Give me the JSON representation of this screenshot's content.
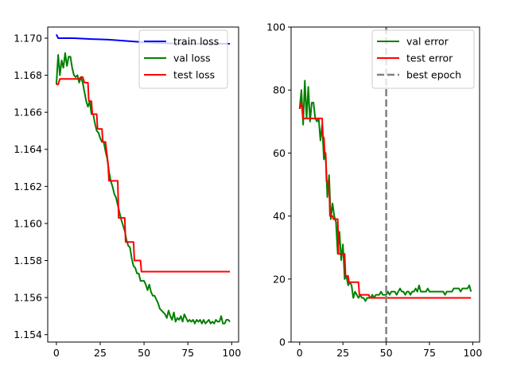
{
  "chart_data": [
    {
      "type": "line",
      "title": "",
      "xlabel": "",
      "ylabel": "",
      "xlim": [
        -4.95,
        103.95
      ],
      "ylim": [
        1.1536,
        1.1706
      ],
      "xticks": [
        0,
        25,
        50,
        75,
        100
      ],
      "yticks": [
        1.154,
        1.156,
        1.158,
        1.16,
        1.162,
        1.164,
        1.166,
        1.168,
        1.17
      ],
      "ytick_labels": [
        "1.154",
        "1.156",
        "1.158",
        "1.160",
        "1.162",
        "1.164",
        "1.166",
        "1.168",
        "1.170"
      ],
      "legend_position": "top-right",
      "series": [
        {
          "name": "train loss",
          "color": "#0000ff",
          "points": [
            [
              0,
              1.1702
            ],
            [
              1,
              1.17
            ],
            [
              10,
              1.17
            ],
            [
              20,
              1.16995
            ],
            [
              30,
              1.16992
            ],
            [
              40,
              1.16985
            ],
            [
              50,
              1.16978
            ],
            [
              60,
              1.16973
            ],
            [
              70,
              1.16971
            ],
            [
              80,
              1.1697
            ],
            [
              90,
              1.1697
            ],
            [
              99,
              1.1697
            ]
          ]
        },
        {
          "name": "val loss",
          "color": "#008000",
          "points": [
            [
              0,
              1.1675
            ],
            [
              1,
              1.1691
            ],
            [
              2,
              1.168
            ],
            [
              3,
              1.1688
            ],
            [
              4,
              1.1684
            ],
            [
              5,
              1.1692
            ],
            [
              6,
              1.1685
            ],
            [
              7,
              1.169
            ],
            [
              8,
              1.169
            ],
            [
              9,
              1.1684
            ],
            [
              10,
              1.168
            ],
            [
              11,
              1.1679
            ],
            [
              12,
              1.168
            ],
            [
              13,
              1.1676
            ],
            [
              14,
              1.1679
            ],
            [
              15,
              1.1676
            ],
            [
              16,
              1.1671
            ],
            [
              17,
              1.1666
            ],
            [
              18,
              1.1663
            ],
            [
              19,
              1.1666
            ],
            [
              20,
              1.1659
            ],
            [
              21,
              1.1659
            ],
            [
              22,
              1.1654
            ],
            [
              23,
              1.165
            ],
            [
              24,
              1.1649
            ],
            [
              25,
              1.1646
            ],
            [
              26,
              1.1644
            ],
            [
              27,
              1.1644
            ],
            [
              28,
              1.1639
            ],
            [
              29,
              1.1635
            ],
            [
              30,
              1.1628
            ],
            [
              31,
              1.1623
            ],
            [
              32,
              1.162
            ],
            [
              33,
              1.1616
            ],
            [
              34,
              1.1614
            ],
            [
              35,
              1.161
            ],
            [
              36,
              1.1606
            ],
            [
              37,
              1.1602
            ],
            [
              38,
              1.1599
            ],
            [
              39,
              1.1596
            ],
            [
              40,
              1.1591
            ],
            [
              41,
              1.1588
            ],
            [
              42,
              1.1587
            ],
            [
              43,
              1.1581
            ],
            [
              44,
              1.1577
            ],
            [
              45,
              1.1576
            ],
            [
              46,
              1.1573
            ],
            [
              47,
              1.1573
            ],
            [
              48,
              1.1569
            ],
            [
              49,
              1.1569
            ],
            [
              50,
              1.1569
            ],
            [
              51,
              1.1567
            ],
            [
              52,
              1.1564
            ],
            [
              53,
              1.1567
            ],
            [
              54,
              1.1563
            ],
            [
              55,
              1.1561
            ],
            [
              56,
              1.1561
            ],
            [
              57,
              1.1559
            ],
            [
              58,
              1.1557
            ],
            [
              59,
              1.1554
            ],
            [
              60,
              1.1553
            ],
            [
              61,
              1.1552
            ],
            [
              62,
              1.1551
            ],
            [
              63,
              1.1549
            ],
            [
              64,
              1.1553
            ],
            [
              65,
              1.155
            ],
            [
              66,
              1.1548
            ],
            [
              67,
              1.1552
            ],
            [
              68,
              1.1547
            ],
            [
              69,
              1.1549
            ],
            [
              70,
              1.1548
            ],
            [
              71,
              1.155
            ],
            [
              72,
              1.1547
            ],
            [
              73,
              1.1551
            ],
            [
              74,
              1.1549
            ],
            [
              75,
              1.1547
            ],
            [
              76,
              1.1548
            ],
            [
              77,
              1.1547
            ],
            [
              78,
              1.1548
            ],
            [
              79,
              1.1546
            ],
            [
              80,
              1.1548
            ],
            [
              81,
              1.1547
            ],
            [
              82,
              1.1548
            ],
            [
              83,
              1.1546
            ],
            [
              84,
              1.1548
            ],
            [
              85,
              1.1546
            ],
            [
              86,
              1.1547
            ],
            [
              87,
              1.1548
            ],
            [
              88,
              1.1546
            ],
            [
              89,
              1.1547
            ],
            [
              90,
              1.1546
            ],
            [
              91,
              1.1548
            ],
            [
              92,
              1.1547
            ],
            [
              93,
              1.1547
            ],
            [
              94,
              1.155
            ],
            [
              95,
              1.1546
            ],
            [
              96,
              1.1546
            ],
            [
              97,
              1.1548
            ],
            [
              98,
              1.1548
            ],
            [
              99,
              1.1547
            ]
          ]
        },
        {
          "name": "test loss",
          "color": "#ff0000",
          "points": [
            [
              0,
              1.1675
            ],
            [
              1,
              1.1675
            ],
            [
              2,
              1.1678
            ],
            [
              13,
              1.1678
            ],
            [
              14,
              1.1679
            ],
            [
              15,
              1.1679
            ],
            [
              16,
              1.1676
            ],
            [
              18,
              1.1676
            ],
            [
              18.5,
              1.1666
            ],
            [
              20,
              1.1666
            ],
            [
              20.5,
              1.1659
            ],
            [
              23,
              1.1659
            ],
            [
              23.5,
              1.1651
            ],
            [
              26,
              1.1651
            ],
            [
              26.5,
              1.1644
            ],
            [
              28,
              1.1644
            ],
            [
              29.5,
              1.1632
            ],
            [
              30,
              1.1623
            ],
            [
              35,
              1.1623
            ],
            [
              35.5,
              1.1603
            ],
            [
              39,
              1.1603
            ],
            [
              39.5,
              1.159
            ],
            [
              44,
              1.159
            ],
            [
              44.5,
              1.158
            ],
            [
              48,
              1.158
            ],
            [
              48.5,
              1.1574
            ],
            [
              99,
              1.1574
            ]
          ]
        }
      ]
    },
    {
      "type": "line",
      "title": "",
      "xlabel": "",
      "ylabel": "",
      "xlim": [
        -4.95,
        103.95
      ],
      "ylim": [
        0,
        100
      ],
      "xticks": [
        0,
        25,
        50,
        75,
        100
      ],
      "yticks": [
        0,
        20,
        40,
        60,
        80,
        100
      ],
      "ytick_labels": [
        "0",
        "20",
        "40",
        "60",
        "80",
        "100"
      ],
      "legend_position": "top-right",
      "series": [
        {
          "name": "val error",
          "color": "#008000",
          "points": [
            [
              0,
              74
            ],
            [
              1,
              80
            ],
            [
              2,
              69
            ],
            [
              3,
              83
            ],
            [
              4,
              71
            ],
            [
              5,
              81
            ],
            [
              6,
              70
            ],
            [
              7,
              76
            ],
            [
              8,
              76
            ],
            [
              9,
              71
            ],
            [
              10,
              70
            ],
            [
              11,
              71
            ],
            [
              12,
              64
            ],
            [
              13,
              69
            ],
            [
              14,
              58
            ],
            [
              15,
              60
            ],
            [
              16,
              46
            ],
            [
              17,
              53
            ],
            [
              18,
              39
            ],
            [
              19,
              44
            ],
            [
              20,
              40
            ],
            [
              21,
              38
            ],
            [
              22,
              28
            ],
            [
              23,
              35
            ],
            [
              24,
              26
            ],
            [
              25,
              31
            ],
            [
              26,
              20
            ],
            [
              27,
              21
            ],
            [
              28,
              18
            ],
            [
              29,
              19
            ],
            [
              30,
              18
            ],
            [
              31,
              14
            ],
            [
              32,
              16
            ],
            [
              33,
              15
            ],
            [
              34,
              14
            ],
            [
              35,
              15
            ],
            [
              36,
              14
            ],
            [
              37,
              14
            ],
            [
              38,
              13
            ],
            [
              39,
              14
            ],
            [
              40,
              14
            ],
            [
              41,
              14
            ],
            [
              42,
              15
            ],
            [
              43,
              14
            ],
            [
              44,
              15
            ],
            [
              45,
              15
            ],
            [
              46,
              15
            ],
            [
              47,
              16
            ],
            [
              48,
              15
            ],
            [
              49,
              15
            ],
            [
              50,
              15
            ],
            [
              51,
              16
            ],
            [
              52,
              15
            ],
            [
              53,
              16
            ],
            [
              54,
              16
            ],
            [
              55,
              16
            ],
            [
              56,
              15
            ],
            [
              57,
              16
            ],
            [
              58,
              17
            ],
            [
              59,
              16
            ],
            [
              60,
              16
            ],
            [
              61,
              15
            ],
            [
              62,
              16
            ],
            [
              63,
              16
            ],
            [
              64,
              15
            ],
            [
              65,
              16
            ],
            [
              66,
              16
            ],
            [
              67,
              17
            ],
            [
              68,
              16
            ],
            [
              69,
              18
            ],
            [
              70,
              16
            ],
            [
              71,
              16
            ],
            [
              72,
              16
            ],
            [
              73,
              16
            ],
            [
              74,
              17
            ],
            [
              75,
              16
            ],
            [
              76,
              16
            ],
            [
              77,
              16
            ],
            [
              78,
              16
            ],
            [
              79,
              16
            ],
            [
              80,
              16
            ],
            [
              81,
              16
            ],
            [
              82,
              16
            ],
            [
              83,
              16
            ],
            [
              84,
              15
            ],
            [
              85,
              16
            ],
            [
              86,
              16
            ],
            [
              87,
              16
            ],
            [
              88,
              16
            ],
            [
              89,
              17
            ],
            [
              90,
              17
            ],
            [
              91,
              17
            ],
            [
              92,
              17
            ],
            [
              93,
              16
            ],
            [
              94,
              17
            ],
            [
              95,
              17
            ],
            [
              96,
              17
            ],
            [
              97,
              17
            ],
            [
              98,
              18
            ],
            [
              99,
              16
            ]
          ]
        },
        {
          "name": "test error",
          "color": "#ff0000",
          "points": [
            [
              0,
              74
            ],
            [
              1,
              76
            ],
            [
              2,
              71
            ],
            [
              13,
              71
            ],
            [
              13.5,
              65
            ],
            [
              14,
              65
            ],
            [
              14.5,
              60
            ],
            [
              15,
              60
            ],
            [
              15.5,
              51
            ],
            [
              17,
              51
            ],
            [
              17.5,
              40
            ],
            [
              19,
              40
            ],
            [
              19.5,
              39
            ],
            [
              22,
              39
            ],
            [
              22.5,
              28
            ],
            [
              26,
              28
            ],
            [
              26.5,
              21
            ],
            [
              28,
              21
            ],
            [
              28.5,
              19
            ],
            [
              34,
              19
            ],
            [
              34.5,
              15
            ],
            [
              40,
              15
            ],
            [
              40.5,
              14
            ],
            [
              99,
              14
            ]
          ]
        },
        {
          "name": "best epoch",
          "color": "#808080",
          "dashed": true,
          "vline_x": 50
        }
      ]
    }
  ]
}
